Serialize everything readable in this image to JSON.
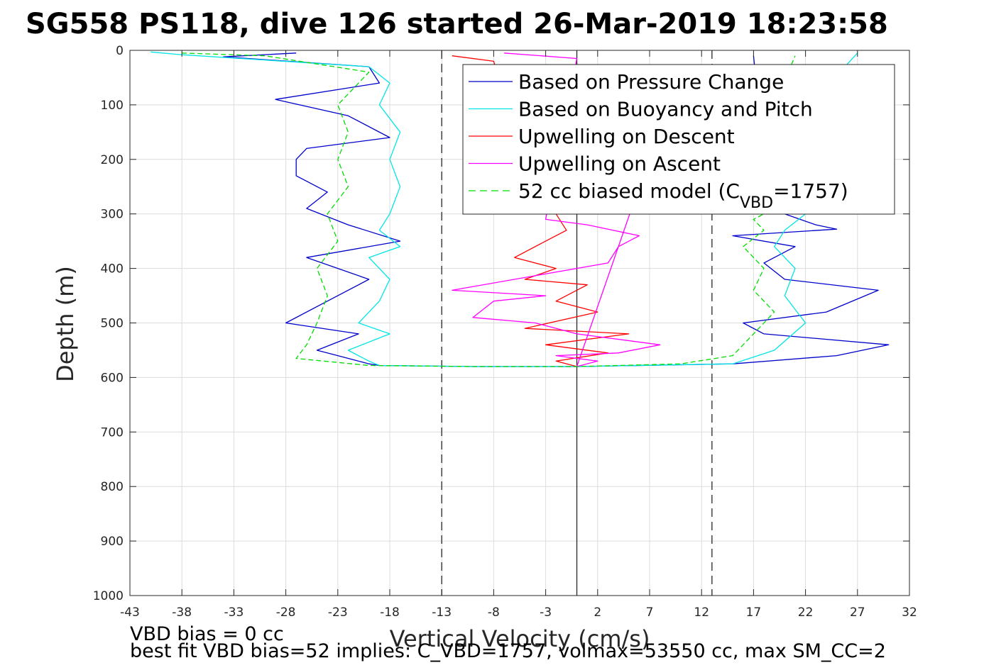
{
  "chart_data": {
    "type": "line",
    "title": "SG558 PS118, dive 126 started 26-Mar-2019 18:23:58",
    "xlabel": "Vertical Velocity (cm/s)",
    "ylabel": "Depth (m)",
    "xlim": [
      -43,
      32
    ],
    "ylim": [
      0,
      1000
    ],
    "y_reversed": true,
    "grid": true,
    "xticks": [
      -43,
      -38,
      -33,
      -28,
      -23,
      -18,
      -13,
      -8,
      -3,
      2,
      7,
      12,
      17,
      22,
      27,
      32
    ],
    "yticks": [
      0,
      100,
      200,
      300,
      400,
      500,
      600,
      700,
      800,
      900,
      1000
    ],
    "reference_lines": [
      {
        "x": -13,
        "style": "dashed",
        "color": "#000000"
      },
      {
        "x": 0,
        "style": "solid",
        "color": "#000000"
      },
      {
        "x": 13,
        "style": "dashed",
        "color": "#000000"
      }
    ],
    "legend": {
      "placement": "top-right",
      "entries": [
        {
          "label": "Based on Pressure Change",
          "color": "#0000cc",
          "style": "solid"
        },
        {
          "label": "Based on Buoyancy and Pitch",
          "color": "#00e5e5",
          "style": "solid"
        },
        {
          "label": "Upwelling on Descent",
          "color": "#ff0000",
          "style": "solid"
        },
        {
          "label": "Upwelling on Ascent",
          "color": "#ff00ff",
          "style": "solid"
        },
        {
          "label_prefix": "52 cc biased model (C",
          "label_sub": "VBD",
          "label_suffix": "=1757)",
          "color": "#00dd00",
          "style": "dashed"
        }
      ]
    },
    "series": [
      {
        "name": "Based on Pressure Change",
        "color": "#0000cc",
        "x": [
          -27,
          -34,
          -20,
          -19,
          -29,
          -22,
          -18,
          -26,
          -27,
          -27,
          -24,
          -26,
          -22,
          -17,
          -26,
          -20,
          -24,
          -28,
          -21,
          -25,
          -23,
          -20,
          -19,
          -10,
          0,
          15,
          25,
          30,
          18,
          16,
          24,
          29,
          20,
          18,
          21,
          15,
          25,
          23,
          20,
          18,
          17
        ],
        "y": [
          5,
          12,
          30,
          60,
          90,
          120,
          160,
          180,
          200,
          230,
          260,
          290,
          320,
          350,
          380,
          420,
          460,
          500,
          520,
          550,
          560,
          575,
          578,
          580,
          580,
          575,
          560,
          540,
          520,
          500,
          480,
          440,
          420,
          390,
          360,
          340,
          328,
          320,
          300,
          200,
          10
        ]
      },
      {
        "name": "Based on Buoyancy and Pitch",
        "color": "#00e5e5",
        "x": [
          -41,
          -38,
          -20,
          -18,
          -19,
          -17,
          -18,
          -17,
          -18,
          -19,
          -17,
          -20,
          -18,
          -19,
          -21,
          -18,
          -22,
          -20,
          -19,
          -10,
          0,
          15,
          19,
          22,
          20,
          21,
          19,
          20,
          22,
          20,
          27
        ],
        "y": [
          3,
          8,
          30,
          60,
          100,
          150,
          200,
          250,
          300,
          330,
          360,
          380,
          420,
          460,
          500,
          520,
          550,
          570,
          578,
          580,
          580,
          575,
          550,
          500,
          450,
          400,
          360,
          330,
          300,
          150,
          5
        ]
      },
      {
        "name": "Upwelling on Descent",
        "color": "#ff0000",
        "x": [
          -12,
          -8,
          -5,
          -2,
          -1,
          -3,
          -6,
          -2,
          -5,
          1,
          -2,
          2,
          -5,
          5,
          -3,
          3,
          -2,
          0
        ],
        "y": [
          10,
          20,
          205,
          300,
          330,
          350,
          380,
          400,
          420,
          430,
          460,
          480,
          510,
          520,
          540,
          555,
          570,
          580
        ]
      },
      {
        "name": "Upwelling on Ascent",
        "color": "#ff00ff",
        "x": [
          -7,
          0,
          -2,
          -3,
          1,
          6,
          4,
          3,
          -12,
          -3,
          -8,
          -10,
          -4,
          0,
          8,
          4,
          -2,
          2,
          0,
          10
        ],
        "y": [
          5,
          15,
          210,
          310,
          320,
          340,
          360,
          390,
          440,
          450,
          460,
          490,
          500,
          520,
          540,
          555,
          560,
          570,
          580,
          30
        ]
      },
      {
        "name": "52 cc biased model (CVBD=1757)",
        "color": "#00dd00",
        "style": "dashed",
        "x": [
          -38,
          -30,
          -20,
          -23,
          -22,
          -23,
          -22,
          -24,
          -23,
          -25,
          -24,
          -25,
          -26,
          -27,
          -20,
          -10,
          0,
          10,
          15,
          17,
          19,
          17,
          18,
          16,
          18,
          17,
          18,
          20,
          19,
          21
        ],
        "y": [
          5,
          10,
          40,
          100,
          150,
          200,
          250,
          300,
          350,
          400,
          450,
          500,
          540,
          565,
          578,
          580,
          580,
          575,
          560,
          520,
          480,
          440,
          400,
          360,
          330,
          310,
          300,
          200,
          100,
          10
        ]
      }
    ],
    "annotations": [
      "VBD bias = 0 cc",
      "best fit VBD bias=52 implies: C_VBD=1757, volmax=53550 cc, max SM_CC=2"
    ]
  }
}
